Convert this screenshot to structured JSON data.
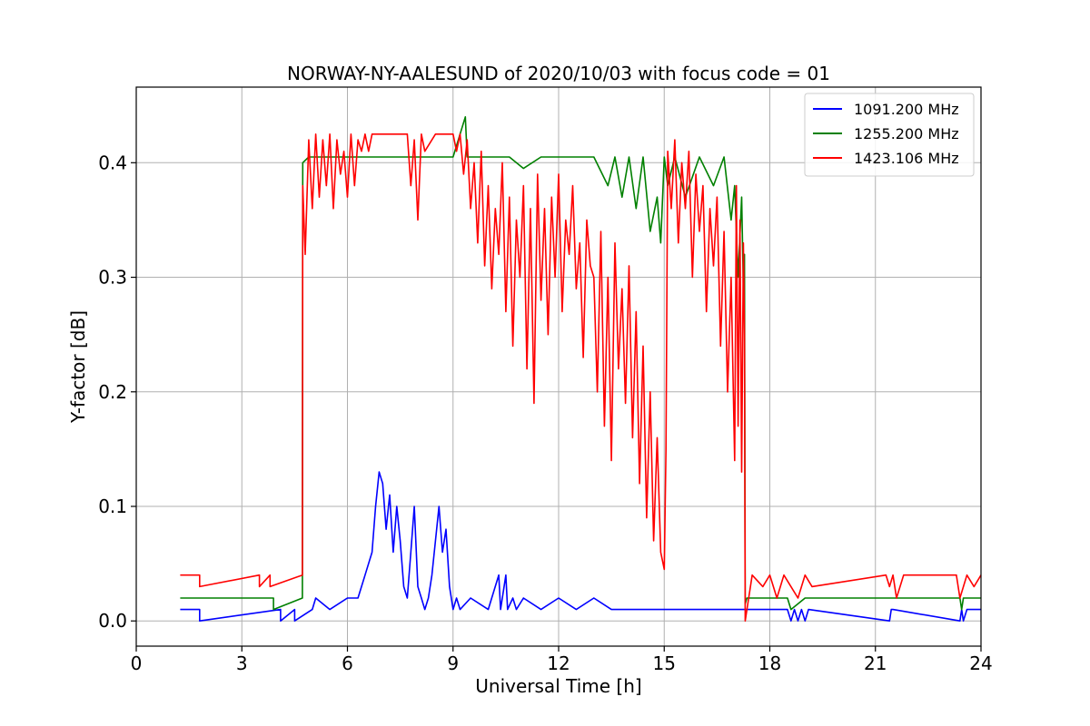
{
  "chart_data": {
    "type": "line",
    "title": "NORWAY-NY-AALESUND of 2020/10/03 with focus code = 01",
    "xlabel": "Universal Time [h]",
    "ylabel": "Y-factor [dB]",
    "xlim": [
      0,
      24
    ],
    "ylim": [
      -0.022,
      0.466
    ],
    "xticks": [
      0,
      3,
      6,
      9,
      12,
      15,
      18,
      21,
      24
    ],
    "xtick_labels": [
      "0",
      "3",
      "6",
      "9",
      "12",
      "15",
      "18",
      "21",
      "24"
    ],
    "yticks": [
      0.0,
      0.1,
      0.2,
      0.3,
      0.4
    ],
    "ytick_labels": [
      "0.0",
      "0.1",
      "0.2",
      "0.3",
      "0.4"
    ],
    "grid": true,
    "legend_position": "top-right",
    "series": [
      {
        "name": "1091.200 MHz",
        "color": "#0000ff",
        "x": [
          1.25,
          1.8,
          1.8,
          4.1,
          4.1,
          4.5,
          4.5,
          5.0,
          5.1,
          5.5,
          6.0,
          6.3,
          6.5,
          6.7,
          6.8,
          6.9,
          7.0,
          7.1,
          7.2,
          7.3,
          7.4,
          7.5,
          7.6,
          7.7,
          7.8,
          7.9,
          8.0,
          8.1,
          8.2,
          8.3,
          8.4,
          8.5,
          8.6,
          8.7,
          8.8,
          8.9,
          9.0,
          9.1,
          9.2,
          9.5,
          10.0,
          10.3,
          10.35,
          10.5,
          10.55,
          10.7,
          10.8,
          11.0,
          11.5,
          12.0,
          12.5,
          13.0,
          13.5,
          14.0,
          15.0,
          16.0,
          17.0,
          18.0,
          18.5,
          18.6,
          18.7,
          18.8,
          18.9,
          19.0,
          19.1,
          21.4,
          21.45,
          21.5,
          23.4,
          23.45,
          23.5,
          23.6,
          24.0
        ],
        "values": [
          0.01,
          0.01,
          0.0,
          0.01,
          0.0,
          0.01,
          0.0,
          0.01,
          0.02,
          0.01,
          0.02,
          0.02,
          0.04,
          0.06,
          0.1,
          0.13,
          0.12,
          0.08,
          0.11,
          0.06,
          0.1,
          0.07,
          0.03,
          0.02,
          0.06,
          0.1,
          0.03,
          0.02,
          0.01,
          0.02,
          0.04,
          0.07,
          0.1,
          0.06,
          0.08,
          0.03,
          0.01,
          0.02,
          0.01,
          0.02,
          0.01,
          0.04,
          0.01,
          0.04,
          0.01,
          0.02,
          0.01,
          0.02,
          0.01,
          0.02,
          0.01,
          0.02,
          0.01,
          0.01,
          0.01,
          0.01,
          0.01,
          0.01,
          0.01,
          0.0,
          0.01,
          0.0,
          0.01,
          0.0,
          0.01,
          0.0,
          0.01,
          0.01,
          0.0,
          0.01,
          0.0,
          0.01,
          0.01
        ]
      },
      {
        "name": "1255.200 MHz",
        "color": "#008000",
        "x": [
          1.25,
          3.9,
          3.9,
          4.72,
          4.73,
          4.9,
          5.2,
          5.5,
          6.0,
          7.0,
          8.0,
          9.0,
          9.35,
          9.4,
          9.6,
          10.0,
          10.6,
          11.0,
          11.5,
          12.0,
          13.0,
          13.4,
          13.6,
          13.8,
          14.0,
          14.2,
          14.4,
          14.6,
          14.8,
          14.9,
          15.0,
          15.1,
          15.3,
          15.6,
          16.0,
          16.4,
          16.7,
          16.9,
          17.0,
          17.1,
          17.2,
          17.25,
          17.28,
          17.3,
          17.35,
          18.0,
          18.5,
          18.6,
          19.0,
          21.0,
          23.4,
          23.45,
          23.5,
          24.0
        ],
        "values": [
          0.02,
          0.02,
          0.01,
          0.02,
          0.4,
          0.405,
          0.405,
          0.405,
          0.405,
          0.405,
          0.405,
          0.405,
          0.44,
          0.405,
          0.405,
          0.405,
          0.405,
          0.395,
          0.405,
          0.405,
          0.405,
          0.38,
          0.405,
          0.37,
          0.405,
          0.36,
          0.405,
          0.34,
          0.37,
          0.33,
          0.405,
          0.38,
          0.405,
          0.37,
          0.405,
          0.38,
          0.405,
          0.35,
          0.38,
          0.3,
          0.37,
          0.29,
          0.32,
          0.015,
          0.02,
          0.02,
          0.02,
          0.01,
          0.02,
          0.02,
          0.02,
          0.01,
          0.02,
          0.02
        ]
      },
      {
        "name": "1423.106 MHz",
        "color": "#ff0000",
        "x": [
          1.25,
          1.8,
          1.8,
          3.5,
          3.5,
          3.8,
          3.8,
          4.72,
          4.73,
          4.8,
          4.9,
          5.0,
          5.1,
          5.2,
          5.3,
          5.4,
          5.5,
          5.6,
          5.7,
          5.8,
          5.9,
          6.0,
          6.1,
          6.2,
          6.3,
          6.4,
          6.5,
          6.6,
          6.7,
          6.9,
          7.2,
          7.5,
          7.7,
          7.8,
          7.9,
          8.0,
          8.1,
          8.2,
          8.5,
          8.8,
          9.0,
          9.1,
          9.2,
          9.3,
          9.4,
          9.5,
          9.6,
          9.7,
          9.8,
          9.9,
          10.0,
          10.1,
          10.2,
          10.3,
          10.4,
          10.5,
          10.6,
          10.7,
          10.8,
          10.9,
          11.0,
          11.1,
          11.2,
          11.3,
          11.4,
          11.5,
          11.6,
          11.7,
          11.8,
          11.9,
          12.0,
          12.1,
          12.2,
          12.3,
          12.4,
          12.5,
          12.6,
          12.7,
          12.8,
          12.9,
          13.0,
          13.1,
          13.2,
          13.3,
          13.4,
          13.5,
          13.6,
          13.7,
          13.8,
          13.9,
          14.0,
          14.1,
          14.2,
          14.3,
          14.4,
          14.5,
          14.6,
          14.7,
          14.8,
          14.9,
          15.0,
          15.05,
          15.1,
          15.2,
          15.3,
          15.4,
          15.5,
          15.6,
          15.7,
          15.8,
          15.9,
          16.0,
          16.1,
          16.2,
          16.3,
          16.4,
          16.5,
          16.6,
          16.7,
          16.8,
          16.9,
          17.0,
          17.05,
          17.1,
          17.15,
          17.2,
          17.25,
          17.28,
          17.3,
          17.5,
          17.8,
          18.0,
          18.2,
          18.4,
          18.6,
          18.8,
          19.0,
          19.2,
          21.3,
          21.4,
          21.5,
          21.6,
          21.8,
          23.3,
          23.4,
          23.6,
          23.8,
          24.0
        ],
        "values": [
          0.04,
          0.04,
          0.03,
          0.04,
          0.03,
          0.04,
          0.03,
          0.04,
          0.38,
          0.32,
          0.42,
          0.36,
          0.425,
          0.37,
          0.42,
          0.38,
          0.425,
          0.36,
          0.42,
          0.39,
          0.41,
          0.37,
          0.425,
          0.38,
          0.42,
          0.41,
          0.425,
          0.41,
          0.425,
          0.425,
          0.425,
          0.425,
          0.425,
          0.38,
          0.42,
          0.35,
          0.425,
          0.41,
          0.425,
          0.425,
          0.425,
          0.41,
          0.425,
          0.39,
          0.42,
          0.36,
          0.4,
          0.33,
          0.41,
          0.31,
          0.38,
          0.29,
          0.36,
          0.32,
          0.4,
          0.27,
          0.37,
          0.24,
          0.35,
          0.3,
          0.38,
          0.22,
          0.36,
          0.19,
          0.39,
          0.28,
          0.36,
          0.25,
          0.37,
          0.3,
          0.39,
          0.27,
          0.35,
          0.32,
          0.38,
          0.29,
          0.33,
          0.23,
          0.35,
          0.31,
          0.3,
          0.2,
          0.34,
          0.17,
          0.3,
          0.14,
          0.33,
          0.22,
          0.29,
          0.19,
          0.31,
          0.16,
          0.27,
          0.12,
          0.24,
          0.09,
          0.2,
          0.07,
          0.16,
          0.06,
          0.045,
          0.15,
          0.41,
          0.36,
          0.42,
          0.33,
          0.4,
          0.36,
          0.41,
          0.3,
          0.39,
          0.34,
          0.38,
          0.27,
          0.36,
          0.31,
          0.37,
          0.24,
          0.34,
          0.2,
          0.3,
          0.14,
          0.38,
          0.17,
          0.35,
          0.13,
          0.33,
          0.25,
          0.0,
          0.04,
          0.03,
          0.04,
          0.02,
          0.04,
          0.03,
          0.02,
          0.04,
          0.03,
          0.04,
          0.03,
          0.04,
          0.02,
          0.04,
          0.04,
          0.02,
          0.04,
          0.03,
          0.04
        ]
      }
    ]
  }
}
